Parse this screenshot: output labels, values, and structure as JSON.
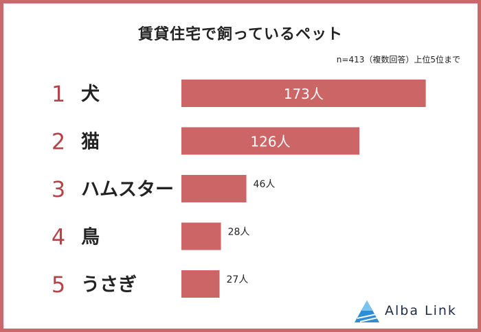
{
  "colors": {
    "bar": "#cc6666",
    "frame": "#c9696b",
    "rank": "#b5444a",
    "text": "#222222",
    "brand_text": "#1f2a44",
    "brand_logo": "#2a8fd6"
  },
  "header": {
    "title": "賃貸住宅で飼っているペット",
    "note": "n=413（複数回答）上位5位まで"
  },
  "chart_data": {
    "type": "bar",
    "orientation": "horizontal",
    "title": "賃貸住宅で飼っているペット",
    "ranks": [
      "1",
      "2",
      "3",
      "4",
      "5"
    ],
    "categories": [
      "犬",
      "猫",
      "ハムスター",
      "鳥",
      "うさぎ"
    ],
    "values": [
      173,
      126,
      46,
      28,
      27
    ],
    "value_labels": [
      "173人",
      "126人",
      "46人",
      "28人",
      "27人"
    ],
    "xlim": [
      0,
      180
    ],
    "grid": false,
    "legend": "none"
  },
  "brand": {
    "name": "Alba Link",
    "logo_icon": "triangle-logo-icon"
  }
}
